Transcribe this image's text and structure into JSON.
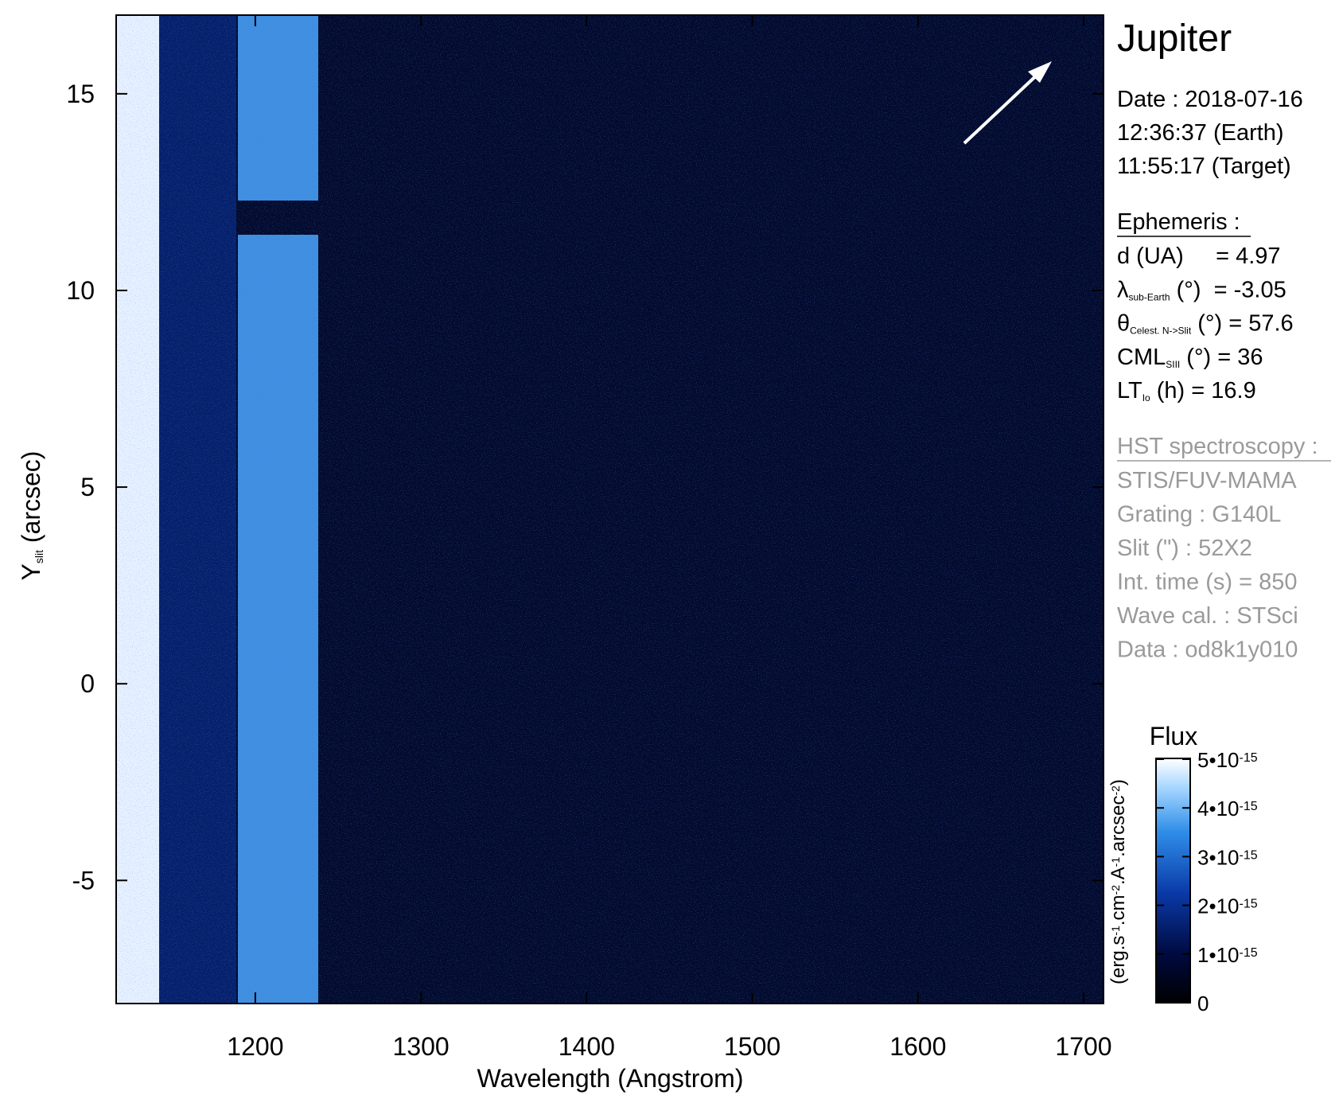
{
  "chart_data": {
    "type": "image",
    "xlabel": "Wavelength (Angstrom)",
    "ylabel": {
      "main": "Y",
      "sub": "slit",
      "rest": " (arcsec)"
    },
    "xlim": [
      1116,
      1712
    ],
    "ylim": [
      -8.13,
      17.0
    ],
    "xticks": [
      1200,
      1300,
      1400,
      1500,
      1600,
      1700
    ],
    "yticks": [
      -5,
      0,
      5,
      10,
      15
    ],
    "target": "Jupiter",
    "date_lines": [
      "Date : 2018-07-16",
      "12:36:37 (Earth)",
      "11:55:17 (Target)"
    ],
    "ephemeris": {
      "heading": "Ephemeris :",
      "items": [
        {
          "sym": "d (UA)",
          "sub": "",
          "unit": "",
          "value": "     = 4.97"
        },
        {
          "sym": "λ",
          "sub": "sub-Earth",
          "unit": " (°)",
          "value": "  = -3.05"
        },
        {
          "sym": "θ",
          "sub": "Celest. N->Slit",
          "unit": " (°)",
          "value": " = 57.6"
        },
        {
          "sym": "CML",
          "sub": "SIII",
          "unit": " (°)",
          "value": " = 36"
        },
        {
          "sym": "LT",
          "sub": "Io",
          "unit": " (h)",
          "value": " = 16.9"
        }
      ]
    },
    "observation": {
      "heading": "HST spectroscopy :",
      "lines": [
        "STIS/FUV-MAMA",
        "Grating : G140L",
        "Slit (\") : 52X2",
        "Int. time (s) = 850",
        "Wave cal. : STSci",
        "Data : od8k1y010"
      ]
    },
    "colorbar": {
      "title": "Flux",
      "unit": [
        {
          "t": "(erg.s"
        },
        {
          "sup": "-1"
        },
        {
          "t": ".cm"
        },
        {
          "sup": "-2"
        },
        {
          "t": ".A"
        },
        {
          "sup": "-1"
        },
        {
          "t": ".arcsec"
        },
        {
          "sup": "-2"
        },
        {
          "t": ")"
        }
      ],
      "lim": [
        0,
        5e-15
      ],
      "ticks": [
        0,
        {
          "value": 1e-15,
          "label": "1•10",
          "exp": "-15"
        },
        {
          "value": 2e-15,
          "label": "2•10",
          "exp": "-15"
        },
        {
          "value": 3e-15,
          "label": "3•10",
          "exp": "-15"
        },
        {
          "value": 4e-15,
          "label": "4•10",
          "exp": "-15"
        },
        {
          "value": 5e-15,
          "label": "5•10",
          "exp": "-15"
        }
      ]
    }
  }
}
